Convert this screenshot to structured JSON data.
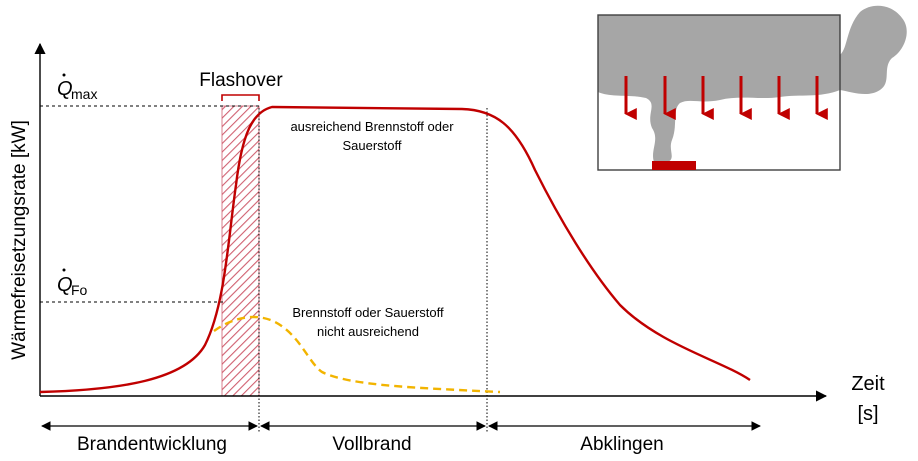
{
  "chart_data": {
    "type": "line",
    "title": "",
    "xlabel_line1": "Zeit",
    "xlabel_line2": "[s]",
    "ylabel": "Wärmefreisetzungsrate [kW]",
    "grid": false,
    "levels": {
      "qmax_symbol": "Q",
      "qmax_subscript": "max",
      "qfo_symbol": "Q",
      "qfo_subscript": "Fo"
    },
    "annotations": {
      "flashover": "Flashover",
      "sufficient_line1": "ausreichend Brennstoff oder",
      "sufficient_line2": "Sauerstoff",
      "insufficient_line1": "Brennstoff oder Sauerstoff",
      "insufficient_line2": "nicht ausreichend"
    },
    "phases": [
      "Brandentwicklung",
      "Vollbrand",
      "Abklingen"
    ],
    "series": [
      {
        "style": "solid",
        "color": "#c00000"
      },
      {
        "style": "dashed",
        "color": "#f2b400"
      }
    ]
  }
}
